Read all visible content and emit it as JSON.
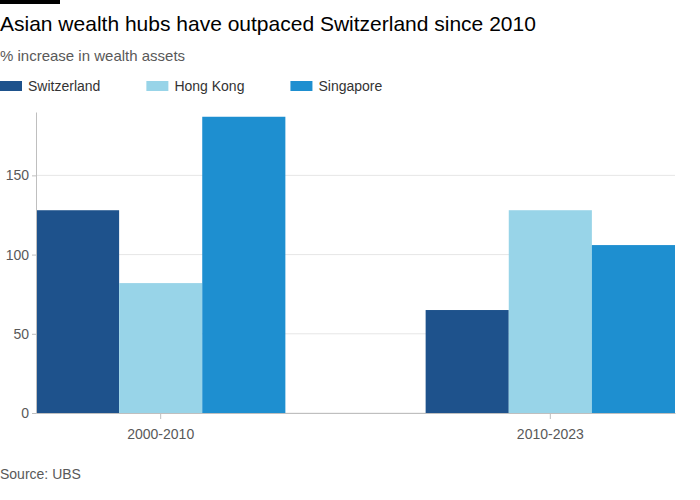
{
  "chart_data": {
    "type": "bar",
    "title": "Asian wealth hubs have outpaced Switzerland since 2010",
    "subtitle": "% increase in wealth assets",
    "categories": [
      "2000-2010",
      "2010-2023"
    ],
    "series": [
      {
        "name": "Switzerland",
        "color": "#1e528c",
        "values": [
          128,
          65
        ]
      },
      {
        "name": "Hong Kong",
        "color": "#98d4e8",
        "values": [
          82,
          128
        ]
      },
      {
        "name": "Singapore",
        "color": "#1e8fd0",
        "values": [
          187,
          106
        ]
      }
    ],
    "ylim": [
      0,
      190
    ],
    "yticks": [
      0,
      50,
      100,
      150
    ],
    "grid": true,
    "legend": "top-left",
    "source": "Source: UBS"
  }
}
